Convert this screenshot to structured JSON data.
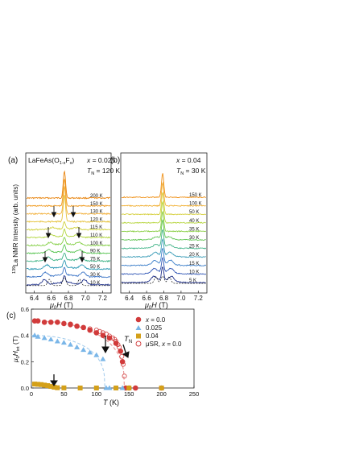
{
  "panel_a": {
    "letter": "(a)",
    "compound_main": "LaFeAs(O",
    "compound_sub1": "1-x",
    "compound_mid": "F",
    "compound_sub2": "x",
    "compound_end": ")",
    "x_label": "x",
    "x_value": " = 0.025",
    "tn_main": "T",
    "tn_sub": "N",
    "tn_value": " = 120 K",
    "xaxis_label_mu": "μ",
    "xaxis_label_sub": "0",
    "xaxis_label_h": "H",
    "xaxis_label_unit": " (T)",
    "xticks": [
      "6.4",
      "6.6",
      "6.8",
      "7.0",
      "7.2"
    ],
    "temps": [
      "200 K",
      "150 K",
      "130 K",
      "120 K",
      "115 K",
      "110 K",
      "100 K",
      "90 K",
      "75 K",
      "50 K",
      "30 K",
      "10 K"
    ],
    "temp_colors": [
      "#e8830c",
      "#f09a1e",
      "#f2b03a",
      "#e6c23c",
      "#cfd13c",
      "#b2d63e",
      "#86d049",
      "#5dc657",
      "#3fb387",
      "#2f9ab4",
      "#3b74c6",
      "#22348c"
    ]
  },
  "panel_b": {
    "letter": "(b)",
    "x_label": "x",
    "x_value": " = 0.04",
    "tn_main": "T",
    "tn_sub": "N",
    "tn_value": " = 30 K",
    "xaxis_label_mu": "μ",
    "xaxis_label_sub": "0",
    "xaxis_label_h": "H",
    "xaxis_label_unit": " (T)",
    "xticks": [
      "6.4",
      "6.6",
      "6.8",
      "7.0",
      "7.2"
    ],
    "temps": [
      "150 K",
      "100 K",
      "50 K",
      "40 K",
      "35 K",
      "30 K",
      "25 K",
      "20 K",
      "15 K",
      "10 K",
      "5 K"
    ],
    "temp_colors": [
      "#ef8f14",
      "#f1ae2e",
      "#d5cf3b",
      "#b6d53e",
      "#8ccf48",
      "#63c656",
      "#45b58a",
      "#3a9cb7",
      "#3b7ec9",
      "#3157b6",
      "#1f2f88"
    ]
  },
  "shared_ylabel_sup": "139",
  "shared_ylabel": "La NMR Intensity (arb. units)",
  "panel_c": {
    "letter": "(c)",
    "ylabel_mu": "μ",
    "ylabel_sub0": "0",
    "ylabel_h": "H",
    "ylabel_subint": "int",
    "ylabel_unit": " (T)",
    "xlabel_t": "T",
    "xlabel_unit": " (K)",
    "tn_main": "T",
    "tn_sub": "N",
    "legend": [
      {
        "text_x": "x",
        "text": " = 0.0",
        "color": "#d13b3b",
        "marker": "circle"
      },
      {
        "text_x": "",
        "text": "0.025",
        "color": "#7ab6e8",
        "marker": "triangle"
      },
      {
        "text_x": "",
        "text": "0.04",
        "color": "#d4a019",
        "marker": "square"
      },
      {
        "text_x": "x",
        "text": "μSR, ",
        "text2": " = 0.0",
        "color": "#d13b3b",
        "marker": "open-circle"
      }
    ]
  },
  "chart_data": {
    "type": "scatter",
    "xlabel": "T (K)",
    "ylabel": "μ0 Hint (T)",
    "xlim": [
      0,
      250
    ],
    "ylim": [
      0,
      0.6
    ],
    "xticks": [
      0,
      50,
      100,
      150,
      200,
      250
    ],
    "yticks": [
      "0.0",
      "0.2",
      "0.4",
      "0.6"
    ],
    "series": [
      {
        "name": "x = 0.0",
        "marker": "circle",
        "color": "#d13b3b",
        "x": [
          5,
          10,
          20,
          30,
          40,
          50,
          60,
          70,
          80,
          90,
          100,
          110,
          120,
          130,
          137,
          140
        ],
        "y": [
          0.51,
          0.51,
          0.5,
          0.5,
          0.5,
          0.49,
          0.485,
          0.47,
          0.46,
          0.44,
          0.42,
          0.4,
          0.38,
          0.34,
          0.28,
          0.2
        ]
      },
      {
        "name": "0.025",
        "marker": "triangle",
        "color": "#7ab6e8",
        "x": [
          5,
          10,
          20,
          30,
          40,
          50,
          60,
          70,
          80,
          90,
          100,
          110
        ],
        "y": [
          0.4,
          0.39,
          0.38,
          0.37,
          0.355,
          0.345,
          0.33,
          0.31,
          0.29,
          0.27,
          0.25,
          0.22
        ]
      },
      {
        "name": "0.04",
        "marker": "square",
        "color": "#d4a019",
        "x": [
          5,
          10,
          15,
          20,
          25,
          30,
          35,
          40,
          50
        ],
        "y": [
          0.03,
          0.028,
          0.026,
          0.022,
          0.018,
          0.012,
          0.006,
          0.002,
          0.001
        ]
      },
      {
        "name": "μSR, x = 0.0",
        "marker": "open-circle",
        "color": "#d13b3b",
        "x": [
          60,
          70,
          80,
          90,
          100,
          105,
          110,
          115,
          120,
          125,
          128,
          130,
          133,
          135,
          137,
          139,
          141,
          143
        ],
        "y": [
          0.48,
          0.47,
          0.46,
          0.45,
          0.44,
          0.43,
          0.42,
          0.41,
          0.395,
          0.38,
          0.37,
          0.355,
          0.33,
          0.31,
          0.28,
          0.24,
          0.18,
          0.09
        ]
      },
      {
        "name": "x = 0.0 (T > TN)",
        "marker": "circle",
        "color": "#d13b3b",
        "x": [
          145,
          150,
          160,
          200
        ],
        "y": [
          0.0,
          0.0,
          0.0,
          0.0
        ]
      },
      {
        "name": "0.025 (T > TN)",
        "marker": "triangle",
        "color": "#7ab6e8",
        "x": [
          115,
          120,
          130,
          140,
          150,
          200
        ],
        "y": [
          0.0,
          0.0,
          0.0,
          0.0,
          0.0,
          0.0
        ]
      },
      {
        "name": "0.04 (T > TN)",
        "marker": "square",
        "color": "#d4a019",
        "x": [
          75,
          100,
          130,
          150,
          200
        ],
        "y": [
          0.0,
          0.0,
          0.0,
          0.0,
          0.0
        ]
      }
    ]
  }
}
